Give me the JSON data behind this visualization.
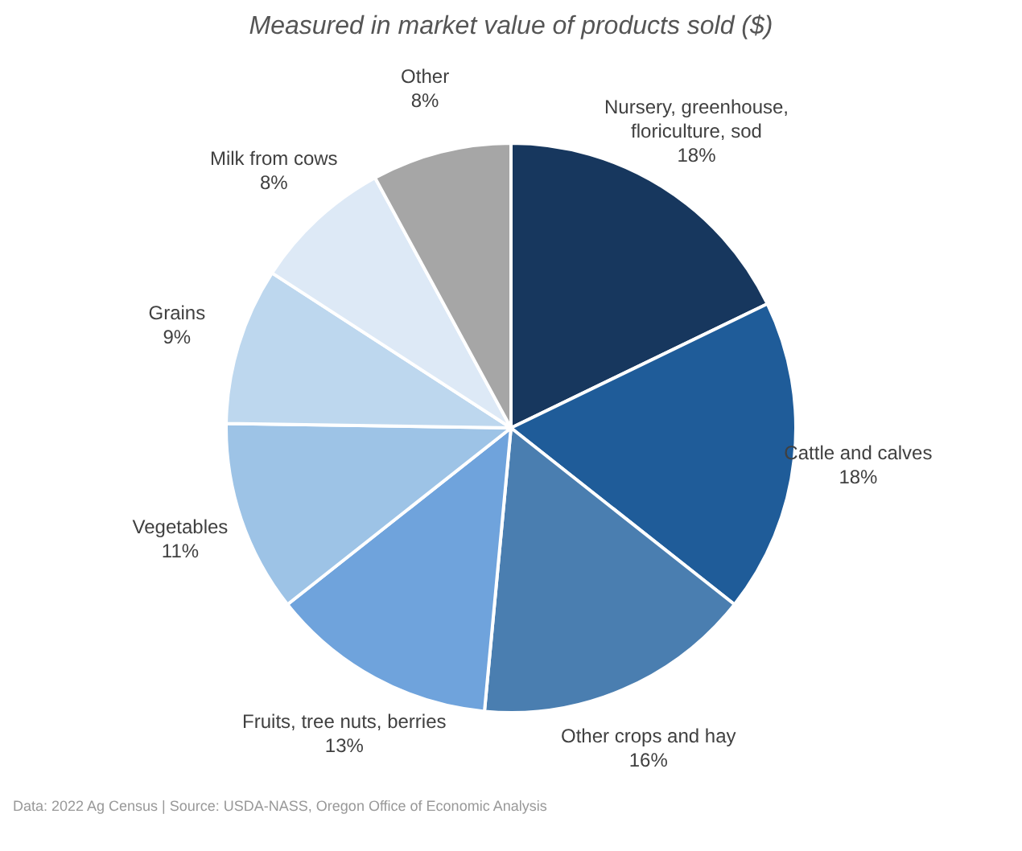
{
  "chart_data": {
    "type": "pie",
    "subtitle": "Measured in market value of products sold ($)",
    "categories": [
      "Nursery, greenhouse, floriculture, sod",
      "Cattle and calves",
      "Other crops and hay",
      "Fruits, tree nuts, berries",
      "Vegetables",
      "Grains",
      "Milk from cows",
      "Other"
    ],
    "values": [
      18,
      18,
      16,
      13,
      11,
      9,
      8,
      8
    ],
    "value_labels": [
      "18%",
      "18%",
      "16%",
      "13%",
      "11%",
      "9%",
      "8%",
      "8%"
    ],
    "colors": [
      "#17375e",
      "#1f5c99",
      "#4a7eb0",
      "#6fa3dc",
      "#9dc3e6",
      "#bdd7ee",
      "#dde9f6",
      "#a6a6a6"
    ],
    "legend": false,
    "annotations": [
      "Data: 2022 Ag Census | Source: USDA-NASS, Oregon Office of Economic Analysis"
    ]
  }
}
